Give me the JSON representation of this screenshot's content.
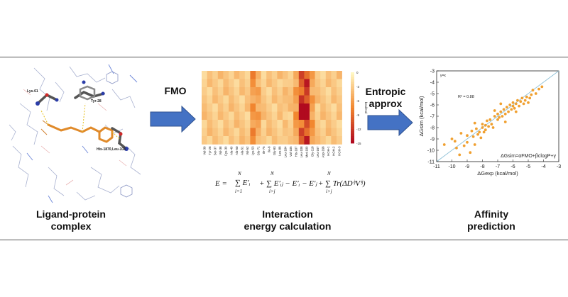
{
  "labels": {
    "complex_line1": "Ligand-protein",
    "complex_line2": "complex",
    "energy_line1": "Interaction",
    "energy_line2": "energy calculation",
    "affinity_line1": "Affinity",
    "affinity_line2": "prediction"
  },
  "arrows": {
    "fmo": "FMO",
    "entropic_line1": "Entropic",
    "entropic_line2": "approx"
  },
  "molecule_labels": {
    "lys": "Lys-61",
    "tyr": "Tyr-28",
    "his": "His-1870,Leu-108"
  },
  "heatmap": {
    "residues": [
      "Val-30",
      "Tyr-28",
      "Ser-37",
      "Val-38",
      "Cys-39",
      "Ala-49",
      "Ala-50",
      "Ala-51",
      "Val-52",
      "Lys-53",
      "Glu-71",
      "Ile-75",
      "Ile-8",
      "Gly-83",
      "Leu-88",
      "Leu-104",
      "Val-105",
      "His-107",
      "Leu-108",
      "Met-109",
      "Gly-110",
      "Leu-167",
      "Asp-168",
      "HOH-1",
      "HOH-2",
      "HOH-3"
    ],
    "colorbar_ticks": [
      "0",
      "-3",
      "-6",
      "-9",
      "-12",
      "-15"
    ],
    "colorbar_label": "kcal/mol",
    "colors": {
      "low": "#fff7c2",
      "mid": "#f2872f",
      "high": "#b10a1f"
    }
  },
  "equation": {
    "lhs": "E =",
    "term1": "∑ E′ᵢ",
    "term2": "+ ∑ E′ᵢⱼ − E′ᵢ − E′ⱼ",
    "term3": "+ ∑ Tr(ΔDⁱʲVⁱʲ)",
    "sum_top": "N",
    "sum_bottom1": "i=1",
    "sum_bottom2": "i>j",
    "sum_bottom3": "i>j"
  },
  "chart_data": {
    "type": "scatter",
    "xlabel": "ΔGexp (kcal/mol)",
    "ylabel": "ΔGsim (kcal/mol)",
    "xlim": [
      -11,
      -3
    ],
    "ylim": [
      -11,
      -3
    ],
    "xticks": [
      -11,
      -10,
      -9,
      -8,
      -7,
      -6,
      -5,
      -4,
      -3
    ],
    "yticks": [
      -3,
      -4,
      -5,
      -6,
      -7,
      -8,
      -9,
      -10,
      -11
    ],
    "annotations": [
      "y=x",
      "R² = 0.88",
      "ΔGsim=αFMO+βclogP+γ"
    ],
    "color": "#f0a030",
    "points": [
      {
        "x": -10.5,
        "y": -9.5
      },
      {
        "x": -10.0,
        "y": -9.0
      },
      {
        "x": -9.8,
        "y": -9.2
      },
      {
        "x": -9.7,
        "y": -9.8
      },
      {
        "x": -9.5,
        "y": -10.4
      },
      {
        "x": -9.2,
        "y": -9.6
      },
      {
        "x": -9.0,
        "y": -8.7
      },
      {
        "x": -9.0,
        "y": -9.3
      },
      {
        "x": -8.8,
        "y": -10.2
      },
      {
        "x": -8.7,
        "y": -8.3
      },
      {
        "x": -8.6,
        "y": -8.8
      },
      {
        "x": -8.5,
        "y": -9.5
      },
      {
        "x": -8.4,
        "y": -8.1
      },
      {
        "x": -8.3,
        "y": -8.6
      },
      {
        "x": -8.2,
        "y": -8.4
      },
      {
        "x": -8.1,
        "y": -8.9
      },
      {
        "x": -8.0,
        "y": -8.0
      },
      {
        "x": -8.0,
        "y": -7.7
      },
      {
        "x": -7.9,
        "y": -8.4
      },
      {
        "x": -7.8,
        "y": -7.8
      },
      {
        "x": -7.8,
        "y": -8.2
      },
      {
        "x": -7.7,
        "y": -7.4
      },
      {
        "x": -7.6,
        "y": -7.9
      },
      {
        "x": -7.5,
        "y": -7.3
      },
      {
        "x": -7.4,
        "y": -7.7
      },
      {
        "x": -7.3,
        "y": -8.0
      },
      {
        "x": -7.2,
        "y": -7.0
      },
      {
        "x": -7.0,
        "y": -7.3
      },
      {
        "x": -7.0,
        "y": -6.8
      },
      {
        "x": -6.9,
        "y": -7.1
      },
      {
        "x": -6.8,
        "y": -6.6
      },
      {
        "x": -6.7,
        "y": -7.0
      },
      {
        "x": -6.6,
        "y": -6.4
      },
      {
        "x": -6.5,
        "y": -6.8
      },
      {
        "x": -6.4,
        "y": -6.2
      },
      {
        "x": -6.3,
        "y": -6.6
      },
      {
        "x": -6.2,
        "y": -6.0
      },
      {
        "x": -6.1,
        "y": -6.4
      },
      {
        "x": -6.0,
        "y": -6.1
      },
      {
        "x": -6.0,
        "y": -5.8
      },
      {
        "x": -5.9,
        "y": -6.3
      },
      {
        "x": -5.8,
        "y": -5.9
      },
      {
        "x": -5.7,
        "y": -5.6
      },
      {
        "x": -5.6,
        "y": -6.1
      },
      {
        "x": -5.5,
        "y": -5.7
      },
      {
        "x": -5.4,
        "y": -5.4
      },
      {
        "x": -5.3,
        "y": -5.9
      },
      {
        "x": -5.2,
        "y": -5.6
      },
      {
        "x": -5.1,
        "y": -5.3
      },
      {
        "x": -5.0,
        "y": -5.8
      },
      {
        "x": -4.9,
        "y": -5.4
      },
      {
        "x": -4.8,
        "y": -5.1
      },
      {
        "x": -4.7,
        "y": -4.7
      },
      {
        "x": -4.5,
        "y": -5.0
      },
      {
        "x": -4.3,
        "y": -4.6
      },
      {
        "x": -4.1,
        "y": -4.4
      },
      {
        "x": -6.5,
        "y": -7.5
      },
      {
        "x": -7.2,
        "y": -6.5
      },
      {
        "x": -8.5,
        "y": -7.6
      },
      {
        "x": -9.4,
        "y": -8.5
      },
      {
        "x": -5.8,
        "y": -6.6
      },
      {
        "x": -6.8,
        "y": -5.9
      }
    ]
  }
}
